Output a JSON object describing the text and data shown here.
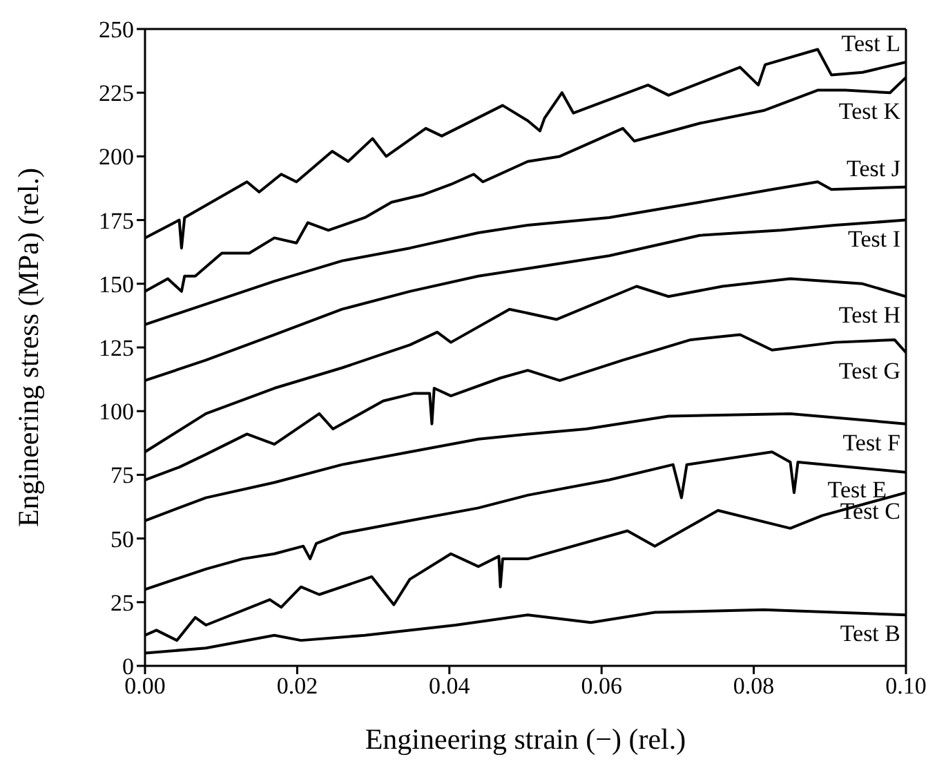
{
  "chart_data": {
    "type": "line",
    "xlabel": "Engineering strain (−) (rel.)",
    "ylabel": "Engineering stress (MPa) (rel.)",
    "xlim": [
      0,
      0.1
    ],
    "xticks": [
      {
        "value": 0,
        "label": "0.00"
      },
      {
        "value": 0.02,
        "label": "0.02"
      },
      {
        "value": 0.04,
        "label": "0.04"
      },
      {
        "value": 0.06,
        "label": "0.06"
      },
      {
        "value": 0.08,
        "label": "0.08"
      },
      {
        "value": 0.1,
        "label": "0.10"
      }
    ],
    "ylim": [
      0,
      250
    ],
    "yticks": [
      0,
      25,
      50,
      75,
      100,
      125,
      150,
      175,
      200,
      225,
      250
    ],
    "marker": "none",
    "line_style": "solid",
    "series": [
      {
        "name": "Test L",
        "color": "#000000",
        "x": [
          0,
          0.0045,
          0.0048,
          0.0052,
          0.0134,
          0.015,
          0.0179,
          0.0199,
          0.0246,
          0.0267,
          0.0299,
          0.0317,
          0.0369,
          0.039,
          0.047,
          0.0503,
          0.0519,
          0.0525,
          0.0548,
          0.0563,
          0.0661,
          0.0688,
          0.0782,
          0.0806,
          0.0815,
          0.0884,
          0.0902,
          0.0943,
          0.1
        ],
        "values": [
          168,
          175,
          164,
          176,
          190,
          186,
          193,
          190,
          202,
          198,
          207,
          200,
          211,
          208,
          220,
          214,
          210,
          215,
          225,
          217,
          228,
          224,
          235,
          228,
          236,
          242,
          232,
          233,
          237
        ]
      },
      {
        "name": "Test K",
        "color": "#000000",
        "x": [
          0,
          0.003,
          0.0048,
          0.0052,
          0.0066,
          0.0101,
          0.0137,
          0.017,
          0.0199,
          0.0214,
          0.0241,
          0.0289,
          0.0324,
          0.0366,
          0.0402,
          0.0432,
          0.0444,
          0.0503,
          0.0545,
          0.0628,
          0.0643,
          0.0729,
          0.0813,
          0.0884,
          0.092,
          0.0979,
          0.1
        ],
        "values": [
          147,
          152,
          147,
          153,
          153,
          162,
          162,
          168,
          166,
          174,
          171,
          176,
          182,
          185,
          189,
          193,
          190,
          198,
          200,
          211,
          206,
          213,
          218,
          226,
          226,
          225,
          231
        ]
      },
      {
        "name": "Test J",
        "color": "#000000",
        "x": [
          0,
          0.008,
          0.017,
          0.0259,
          0.0348,
          0.0438,
          0.0503,
          0.061,
          0.0729,
          0.0824,
          0.0884,
          0.0902,
          0.1
        ],
        "values": [
          134,
          142,
          151,
          159,
          164,
          170,
          173,
          176,
          182,
          187,
          190,
          187,
          188
        ]
      },
      {
        "name": "Test I",
        "color": "#000000",
        "x": [
          0,
          0.008,
          0.017,
          0.0259,
          0.0348,
          0.0438,
          0.0503,
          0.061,
          0.0729,
          0.0836,
          0.0907,
          0.1
        ],
        "values": [
          112,
          120,
          130,
          140,
          147,
          153,
          156,
          161,
          169,
          171,
          173,
          175
        ]
      },
      {
        "name": "Test H",
        "color": "#000000",
        "x": [
          0,
          0.008,
          0.017,
          0.0259,
          0.0348,
          0.0384,
          0.0402,
          0.0479,
          0.0541,
          0.0646,
          0.0688,
          0.0759,
          0.0848,
          0.0943,
          0.1
        ],
        "values": [
          84,
          99,
          109,
          117,
          126,
          131,
          127,
          140,
          136,
          149,
          145,
          149,
          152,
          150,
          145
        ]
      },
      {
        "name": "Test G",
        "color": "#000000",
        "x": [
          0,
          0.0045,
          0.008,
          0.0134,
          0.017,
          0.0229,
          0.0247,
          0.0313,
          0.0354,
          0.0374,
          0.0377,
          0.038,
          0.0402,
          0.0467,
          0.0503,
          0.0545,
          0.0628,
          0.0717,
          0.0782,
          0.0824,
          0.0907,
          0.0985,
          0.1
        ],
        "values": [
          73,
          78,
          83,
          91,
          87,
          99,
          93,
          104,
          107,
          107,
          95,
          109,
          106,
          113,
          116,
          112,
          120,
          128,
          130,
          124,
          127,
          128,
          123
        ]
      },
      {
        "name": "Test F",
        "color": "#000000",
        "x": [
          0,
          0.008,
          0.017,
          0.0259,
          0.0348,
          0.0438,
          0.0503,
          0.058,
          0.0688,
          0.0848,
          0.1
        ],
        "values": [
          57,
          66,
          72,
          79,
          84,
          89,
          91,
          93,
          98,
          99,
          95
        ]
      },
      {
        "name": "Test E",
        "color": "#000000",
        "x": [
          0,
          0.008,
          0.0128,
          0.017,
          0.0208,
          0.0217,
          0.0225,
          0.0259,
          0.0348,
          0.0438,
          0.0503,
          0.061,
          0.0694,
          0.0705,
          0.0712,
          0.0824,
          0.0848,
          0.0853,
          0.0858,
          0.1
        ],
        "values": [
          30,
          38,
          42,
          44,
          47,
          42,
          48,
          52,
          57,
          62,
          67,
          73,
          79,
          66,
          79,
          84,
          80,
          68,
          80,
          76
        ]
      },
      {
        "name": "Test C",
        "color": "#000000",
        "x": [
          0,
          0.0015,
          0.0042,
          0.0066,
          0.008,
          0.0164,
          0.0179,
          0.0205,
          0.0229,
          0.0298,
          0.0327,
          0.0348,
          0.0402,
          0.0438,
          0.0465,
          0.0467,
          0.047,
          0.0503,
          0.0634,
          0.067,
          0.0753,
          0.0848,
          0.089,
          0.1
        ],
        "values": [
          12,
          14,
          10,
          19,
          16,
          26,
          23,
          31,
          28,
          35,
          24,
          34,
          44,
          39,
          43,
          31,
          42,
          42,
          53,
          47,
          61,
          54,
          59,
          68
        ]
      },
      {
        "name": "Test B",
        "color": "#000000",
        "x": [
          0,
          0.008,
          0.017,
          0.0205,
          0.0289,
          0.0408,
          0.0503,
          0.0586,
          0.067,
          0.0813,
          0.1
        ],
        "values": [
          5,
          7,
          12,
          10,
          12,
          16,
          20,
          17,
          21,
          22,
          20
        ]
      }
    ]
  }
}
